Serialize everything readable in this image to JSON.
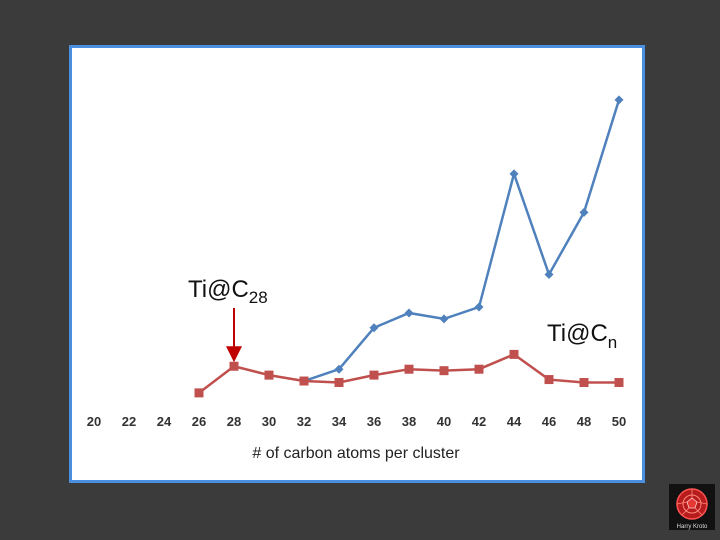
{
  "chart_data": {
    "type": "line",
    "xlabel": "# of carbon atoms per cluster",
    "ylabel": "",
    "x": [
      20,
      22,
      24,
      26,
      28,
      30,
      32,
      34,
      36,
      38,
      40,
      42,
      44,
      46,
      48,
      50
    ],
    "ylim": [
      0,
      100
    ],
    "grid": false,
    "series": [
      {
        "marker": "diamond",
        "color": "#4f81bd",
        "x": [
          32,
          34,
          36,
          38,
          40,
          42,
          44,
          46,
          48,
          50
        ],
        "values": [
          1,
          5,
          19,
          24,
          22,
          26,
          71,
          37,
          58,
          96
        ]
      },
      {
        "marker": "square",
        "color": "#c0504d",
        "x": [
          26,
          28,
          30,
          32,
          34,
          36,
          38,
          40,
          42,
          44,
          46,
          48,
          50
        ],
        "values": [
          -3,
          6,
          3,
          1,
          0.5,
          3,
          5,
          4.5,
          5,
          10,
          1.5,
          0.5,
          0.5
        ]
      }
    ],
    "annotations": [
      {
        "text": "Ti@C",
        "sub": "28",
        "points_to_x": 28,
        "arrow_color": "#c00000"
      },
      {
        "text": "Ti@C",
        "sub": "n"
      }
    ]
  },
  "logo": {
    "caption": "Harry Kroto"
  }
}
